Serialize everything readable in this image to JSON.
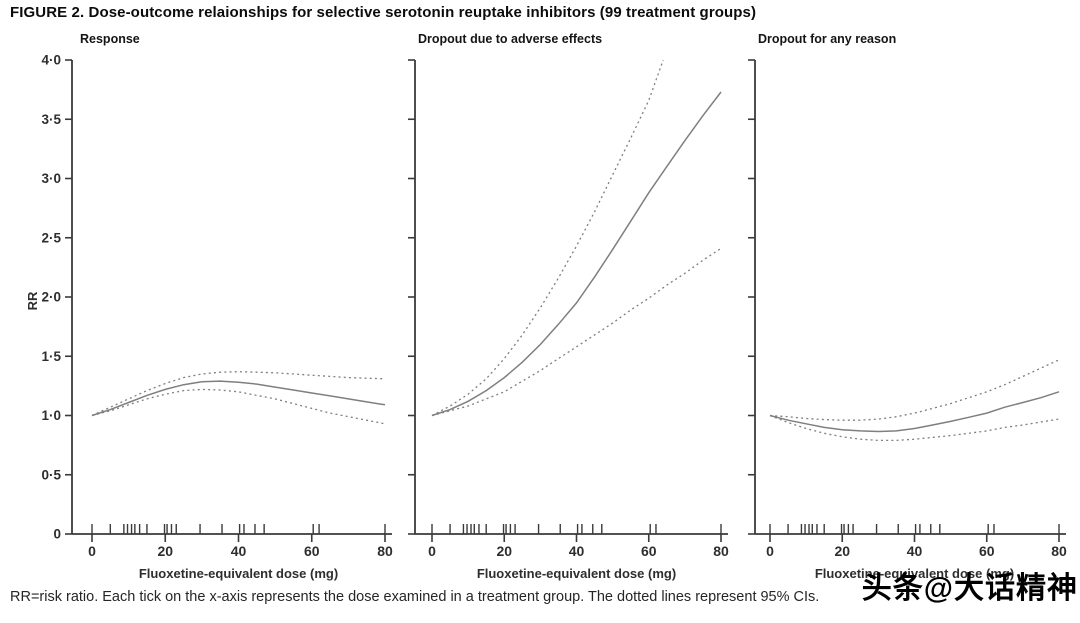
{
  "figure": {
    "title": "FIGURE 2.  Dose-outcome relaionships for selective serotonin reuptake inhibitors (99 treatment groups)",
    "caption": "RR=risk ratio. Each tick on the x-axis represents the dose examined in a treatment group. The dotted lines represent 95% CIs.",
    "watermark": "头条@大话精神"
  },
  "colors": {
    "axis": "#3a3a3a",
    "curve": "#7f7f7f",
    "tick_text": "#2e2e2e",
    "panel_title_text": "#151515"
  },
  "chart_data": {
    "type": "line",
    "xlabel": "Fluoxetine-equivalent dose (mg)",
    "ylabel": "RR",
    "xlim": [
      0,
      80
    ],
    "ylim": [
      0,
      4
    ],
    "grid": false,
    "legend": "none",
    "x_ticks": [
      0,
      20,
      40,
      60,
      80
    ],
    "y_ticks": [
      0,
      0.5,
      1,
      1.5,
      2,
      2.5,
      3,
      3.5,
      4
    ],
    "y_tick_labels": [
      "0",
      "0·5",
      "1·0",
      "1·5",
      "2·0",
      "2·5",
      "3·0",
      "3·5",
      "4·0"
    ],
    "rug_doses": [
      0,
      5,
      8.7,
      9.7,
      10.8,
      11.7,
      13,
      15,
      19.8,
      20.5,
      21.7,
      23,
      29.5,
      35.5,
      40.3,
      41.5,
      44.5,
      47,
      60.4,
      62,
      80
    ],
    "panels": [
      {
        "title": "Response",
        "series": [
          {
            "name": "RR",
            "style": "solid",
            "points": [
              [
                0,
                1.0
              ],
              [
                5,
                1.05
              ],
              [
                10,
                1.11
              ],
              [
                15,
                1.17
              ],
              [
                20,
                1.22
              ],
              [
                25,
                1.26
              ],
              [
                30,
                1.285
              ],
              [
                35,
                1.29
              ],
              [
                40,
                1.28
              ],
              [
                45,
                1.265
              ],
              [
                50,
                1.24
              ],
              [
                55,
                1.215
              ],
              [
                60,
                1.19
              ],
              [
                65,
                1.165
              ],
              [
                70,
                1.14
              ],
              [
                75,
                1.115
              ],
              [
                80,
                1.09
              ]
            ]
          },
          {
            "name": "95% CI upper",
            "style": "dotted",
            "points": [
              [
                0,
                1.0
              ],
              [
                5,
                1.07
              ],
              [
                10,
                1.14
              ],
              [
                15,
                1.21
              ],
              [
                20,
                1.27
              ],
              [
                25,
                1.32
              ],
              [
                30,
                1.35
              ],
              [
                35,
                1.365
              ],
              [
                40,
                1.37
              ],
              [
                45,
                1.365
              ],
              [
                50,
                1.36
              ],
              [
                55,
                1.35
              ],
              [
                60,
                1.34
              ],
              [
                65,
                1.33
              ],
              [
                70,
                1.32
              ],
              [
                75,
                1.315
              ],
              [
                80,
                1.31
              ]
            ]
          },
          {
            "name": "95% CI lower",
            "style": "dotted",
            "points": [
              [
                0,
                1.0
              ],
              [
                5,
                1.04
              ],
              [
                10,
                1.09
              ],
              [
                15,
                1.14
              ],
              [
                20,
                1.18
              ],
              [
                25,
                1.21
              ],
              [
                30,
                1.22
              ],
              [
                35,
                1.215
              ],
              [
                40,
                1.2
              ],
              [
                45,
                1.17
              ],
              [
                50,
                1.14
              ],
              [
                55,
                1.1
              ],
              [
                60,
                1.06
              ],
              [
                65,
                1.02
              ],
              [
                70,
                0.99
              ],
              [
                75,
                0.96
              ],
              [
                80,
                0.93
              ]
            ]
          }
        ]
      },
      {
        "title": "Dropout due to adverse effects",
        "series": [
          {
            "name": "RR",
            "style": "solid",
            "points": [
              [
                0,
                1.0
              ],
              [
                5,
                1.05
              ],
              [
                10,
                1.12
              ],
              [
                15,
                1.21
              ],
              [
                20,
                1.32
              ],
              [
                25,
                1.45
              ],
              [
                30,
                1.6
              ],
              [
                35,
                1.77
              ],
              [
                40,
                1.95
              ],
              [
                45,
                2.17
              ],
              [
                50,
                2.4
              ],
              [
                55,
                2.64
              ],
              [
                60,
                2.88
              ],
              [
                65,
                3.1
              ],
              [
                70,
                3.32
              ],
              [
                75,
                3.53
              ],
              [
                80,
                3.73
              ]
            ]
          },
          {
            "name": "95% CI upper",
            "style": "dotted",
            "points": [
              [
                0,
                1.0
              ],
              [
                5,
                1.08
              ],
              [
                10,
                1.18
              ],
              [
                15,
                1.31
              ],
              [
                20,
                1.48
              ],
              [
                25,
                1.68
              ],
              [
                30,
                1.91
              ],
              [
                35,
                2.16
              ],
              [
                40,
                2.43
              ],
              [
                45,
                2.72
              ],
              [
                50,
                3.03
              ],
              [
                55,
                3.34
              ],
              [
                60,
                3.66
              ],
              [
                64,
                4.0
              ]
            ]
          },
          {
            "name": "95% CI lower",
            "style": "dotted",
            "points": [
              [
                0,
                1.0
              ],
              [
                5,
                1.04
              ],
              [
                10,
                1.08
              ],
              [
                15,
                1.14
              ],
              [
                20,
                1.2
              ],
              [
                25,
                1.29
              ],
              [
                30,
                1.38
              ],
              [
                35,
                1.48
              ],
              [
                40,
                1.58
              ],
              [
                45,
                1.68
              ],
              [
                50,
                1.78
              ],
              [
                55,
                1.89
              ],
              [
                60,
                1.99
              ],
              [
                65,
                2.1
              ],
              [
                70,
                2.2
              ],
              [
                75,
                2.31
              ],
              [
                80,
                2.41
              ]
            ]
          }
        ]
      },
      {
        "title": "Dropout for any reason",
        "series": [
          {
            "name": "RR",
            "style": "solid",
            "points": [
              [
                0,
                1.0
              ],
              [
                5,
                0.96
              ],
              [
                10,
                0.93
              ],
              [
                15,
                0.9
              ],
              [
                20,
                0.88
              ],
              [
                25,
                0.87
              ],
              [
                30,
                0.865
              ],
              [
                35,
                0.87
              ],
              [
                40,
                0.89
              ],
              [
                45,
                0.92
              ],
              [
                50,
                0.95
              ],
              [
                55,
                0.985
              ],
              [
                60,
                1.02
              ],
              [
                65,
                1.07
              ],
              [
                70,
                1.11
              ],
              [
                75,
                1.15
              ],
              [
                80,
                1.2
              ]
            ]
          },
          {
            "name": "95% CI upper",
            "style": "dotted",
            "points": [
              [
                0,
                1.0
              ],
              [
                5,
                0.99
              ],
              [
                10,
                0.975
              ],
              [
                15,
                0.965
              ],
              [
                20,
                0.96
              ],
              [
                25,
                0.96
              ],
              [
                30,
                0.97
              ],
              [
                35,
                0.99
              ],
              [
                40,
                1.02
              ],
              [
                45,
                1.06
              ],
              [
                50,
                1.1
              ],
              [
                55,
                1.15
              ],
              [
                60,
                1.2
              ],
              [
                65,
                1.26
              ],
              [
                70,
                1.33
              ],
              [
                75,
                1.4
              ],
              [
                80,
                1.47
              ]
            ]
          },
          {
            "name": "95% CI lower",
            "style": "dotted",
            "points": [
              [
                0,
                1.0
              ],
              [
                5,
                0.94
              ],
              [
                10,
                0.89
              ],
              [
                15,
                0.85
              ],
              [
                20,
                0.82
              ],
              [
                25,
                0.8
              ],
              [
                30,
                0.79
              ],
              [
                35,
                0.79
              ],
              [
                40,
                0.8
              ],
              [
                45,
                0.815
              ],
              [
                50,
                0.83
              ],
              [
                55,
                0.85
              ],
              [
                60,
                0.87
              ],
              [
                65,
                0.9
              ],
              [
                70,
                0.92
              ],
              [
                75,
                0.945
              ],
              [
                80,
                0.97
              ]
            ]
          }
        ]
      }
    ]
  }
}
